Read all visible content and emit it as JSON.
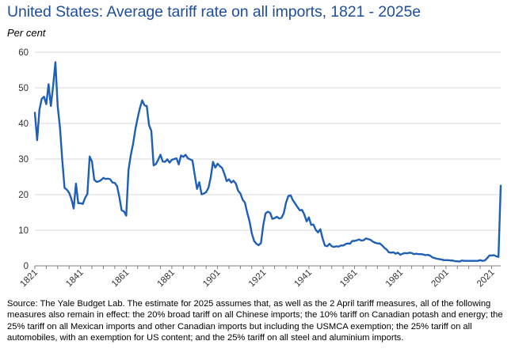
{
  "chart_data": {
    "type": "line",
    "title": "United States: Average tariff rate on all imports, 1821 - 2025e",
    "ylabel": "Per cent",
    "xlabel": "",
    "xlim": [
      1821,
      2025
    ],
    "ylim": [
      0,
      60
    ],
    "x_ticks": [
      "1821",
      "1841",
      "1861",
      "1881",
      "1901",
      "1921",
      "1941",
      "1961",
      "1981",
      "2001",
      "2021"
    ],
    "y_ticks": [
      "0",
      "10",
      "20",
      "30",
      "40",
      "50",
      "60"
    ],
    "grid": "horizontal",
    "legend": "none",
    "line_color": "#1f5fb5",
    "series": [
      {
        "x": [
          1821,
          1822,
          1823,
          1824,
          1825,
          1826,
          1827,
          1828,
          1829,
          1830,
          1831,
          1832,
          1833,
          1834,
          1835,
          1836,
          1837,
          1838,
          1839,
          1840,
          1841,
          1842,
          1843,
          1844,
          1845,
          1846,
          1847,
          1848,
          1849,
          1850,
          1851,
          1852,
          1853,
          1854,
          1855,
          1856,
          1857,
          1858,
          1859,
          1860,
          1861,
          1862,
          1863,
          1864,
          1865,
          1866,
          1867,
          1868,
          1869,
          1870,
          1871,
          1872,
          1873,
          1874,
          1875,
          1876,
          1877,
          1878,
          1879,
          1880,
          1881,
          1882,
          1883,
          1884,
          1885,
          1886,
          1887,
          1888,
          1889,
          1890,
          1891,
          1892,
          1893,
          1894,
          1895,
          1896,
          1897,
          1898,
          1899,
          1900,
          1901,
          1902,
          1903,
          1904,
          1905,
          1906,
          1907,
          1908,
          1909,
          1910,
          1911,
          1912,
          1913,
          1914,
          1915,
          1916,
          1917,
          1918,
          1919,
          1920,
          1921,
          1922,
          1923,
          1924,
          1925,
          1926,
          1927,
          1928,
          1929,
          1930,
          1931,
          1932,
          1933,
          1934,
          1935,
          1936,
          1937,
          1938,
          1939,
          1940,
          1941,
          1942,
          1943,
          1944,
          1945,
          1946,
          1947,
          1948,
          1949,
          1950,
          1951,
          1952,
          1953,
          1954,
          1955,
          1956,
          1957,
          1958,
          1959,
          1960,
          1961,
          1962,
          1963,
          1964,
          1965,
          1966,
          1967,
          1968,
          1969,
          1970,
          1971,
          1972,
          1973,
          1974,
          1975,
          1976,
          1977,
          1978,
          1979,
          1980,
          1981,
          1982,
          1983,
          1984,
          1985,
          1986,
          1987,
          1988,
          1989,
          1990,
          1991,
          1992,
          1993,
          1994,
          1995,
          1996,
          1997,
          1998,
          1999,
          2000,
          2001,
          2002,
          2003,
          2004,
          2005,
          2006,
          2007,
          2008,
          2009,
          2010,
          2011,
          2012,
          2013,
          2014,
          2015,
          2016,
          2017,
          2018,
          2019,
          2020,
          2021,
          2022,
          2023,
          2024,
          2025
        ],
        "values": [
          43,
          35.3,
          43.8,
          46.9,
          47.5,
          45.4,
          51,
          44.9,
          50.5,
          57.2,
          44.8,
          38.8,
          29.7,
          21.9,
          21.4,
          20.5,
          18.8,
          16.1,
          23.1,
          17.6,
          17.6,
          17.4,
          19.1,
          20.2,
          30.7,
          29.3,
          24.2,
          23.6,
          23.7,
          24.1,
          24.7,
          24.4,
          24.5,
          24.3,
          23.4,
          23.3,
          22.4,
          19.3,
          15.6,
          15.3,
          14.1,
          26.9,
          31.1,
          34.2,
          38.3,
          41.5,
          44.3,
          46.5,
          45.1,
          44.9,
          39.5,
          37.9,
          28.2,
          28.6,
          29.8,
          31.2,
          29.3,
          29.2,
          29.9,
          29,
          29.8,
          30,
          30.2,
          28.5,
          31,
          30.6,
          31.2,
          30.2,
          29.9,
          29.6,
          25.6,
          21.6,
          23.5,
          20.1,
          20.3,
          20.7,
          21.9,
          24.8,
          29.2,
          27.6,
          28.7,
          28,
          27.5,
          25.8,
          23.8,
          24.3,
          23.4,
          23.9,
          23.1,
          21.1,
          20.3,
          18.6,
          17.7,
          14.9,
          12.5,
          9.1,
          7,
          6.2,
          5.8,
          6.4,
          11.4,
          14.7,
          15.2,
          14.9,
          13.2,
          13.4,
          13.8,
          13.3,
          13.5,
          14.8,
          17.8,
          19.6,
          19.8,
          18.4,
          17.5,
          16.5,
          15.6,
          15.7,
          14.4,
          12.5,
          13.6,
          11.5,
          11.6,
          10.1,
          9.4,
          10.3,
          7.7,
          5.7,
          5.5,
          6.2,
          5.5,
          5.3,
          5.5,
          5.4,
          5.7,
          5.7,
          6.1,
          6.3,
          6.2,
          7,
          7,
          7.2,
          7.4,
          7.1,
          7.2,
          7.7,
          7.5,
          7.3,
          6.8,
          6.5,
          6.3,
          6.3,
          5.8,
          5.1,
          4.6,
          3.8,
          3.7,
          3.8,
          3.4,
          3.7,
          3.1,
          3.4,
          3.6,
          3.5,
          3.7,
          3.6,
          3.3,
          3.4,
          3.3,
          3.3,
          3.2,
          3,
          3.1,
          2.9,
          2.4,
          2.2,
          2,
          1.9,
          1.8,
          1.6,
          1.6,
          1.6,
          1.5,
          1.5,
          1.3,
          1.3,
          1.2,
          1.5,
          1.4,
          1.4,
          1.4,
          1.4,
          1.4,
          1.4,
          1.4,
          1.6,
          1.4,
          1.5,
          2.1,
          2.9,
          2.9,
          3,
          2.7,
          2.5,
          22.5
        ]
      }
    ]
  },
  "source_note": "Source: The Yale Budget Lab. The estimate for 2025 assumes that, as well as the 2 April tariff measures, all of the following measures also remain in effect: the 20% broad tariff on all Chinese  imports;  the 10% tariff on Canadian potash and energy; the 25% tariff on all Mexican imports and other Canadian imports but including the USMCA exemption; the 25% tariff on all automobiles, with an exemption for US content; and the 25% tariff on all steel and aluminium imports."
}
